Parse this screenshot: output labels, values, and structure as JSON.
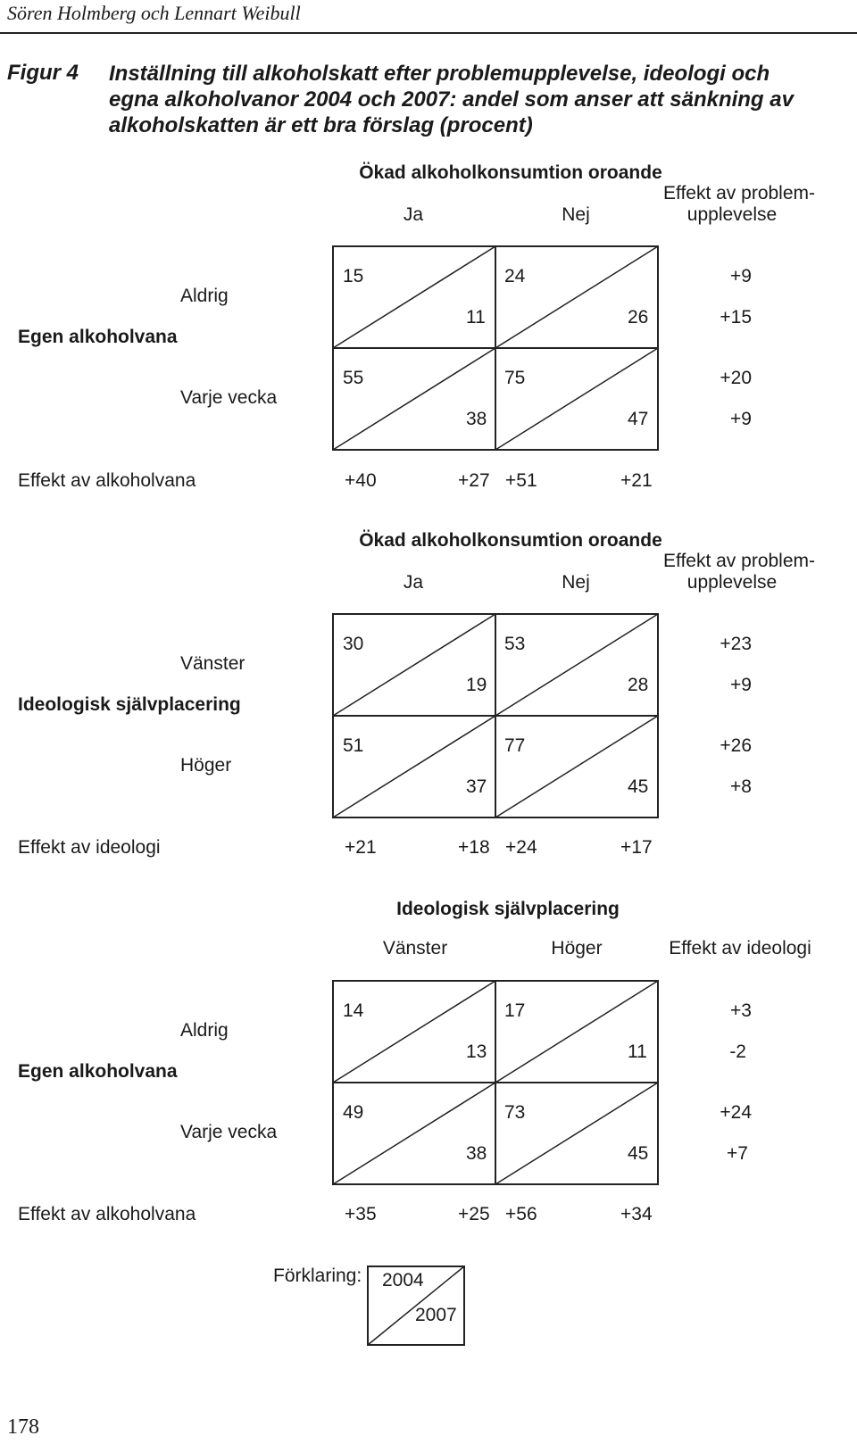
{
  "header": {
    "author": "Sören Holmberg och Lennart Weibull"
  },
  "figure": {
    "label": "Figur 4",
    "title_lines": [
      "Inställning till alkoholskatt efter problemupplevelse, ideologi och",
      "egna alkoholvanor 2004 och 2007: andel som anser att sänkning av",
      "alkoholskatten är ett bra förslag (procent)"
    ]
  },
  "panel1": {
    "col_header": "Ökad alkoholkonsumtion oroande",
    "col1": "Ja",
    "col2": "Nej",
    "effect_header_1": "Effekt av problem-",
    "effect_header_2": "upplevelse",
    "row_group": "Egen alkoholvana",
    "row1": "Aldrig",
    "row2": "Varje vecka",
    "cells": {
      "r1c1_2004": "15",
      "r1c1_2007": "11",
      "r1c2_2004": "24",
      "r1c2_2007": "26",
      "r2c1_2004": "55",
      "r2c1_2007": "38",
      "r2c2_2004": "75",
      "r2c2_2007": "47"
    },
    "row_effects": [
      "+9",
      "+15",
      "+20",
      "+9"
    ],
    "bottom_label": "Effekt av alkoholvana",
    "bottom_effects": [
      "+40",
      "+27",
      "+51",
      "+21"
    ]
  },
  "panel2": {
    "col_header": "Ökad alkoholkonsumtion oroande",
    "col1": "Ja",
    "col2": "Nej",
    "effect_header_1": "Effekt av problem-",
    "effect_header_2": "upplevelse",
    "row_group": "Ideologisk självplacering",
    "row1": "Vänster",
    "row2": "Höger",
    "cells": {
      "r1c1_2004": "30",
      "r1c1_2007": "19",
      "r1c2_2004": "53",
      "r1c2_2007": "28",
      "r2c1_2004": "51",
      "r2c1_2007": "37",
      "r2c2_2004": "77",
      "r2c2_2007": "45"
    },
    "row_effects": [
      "+23",
      "+9",
      "+26",
      "+8"
    ],
    "bottom_label": "Effekt av ideologi",
    "bottom_effects": [
      "+21",
      "+18",
      "+24",
      "+17"
    ]
  },
  "panel3": {
    "col_header": "Ideologisk självplacering",
    "col1": "Vänster",
    "col2": "Höger",
    "effect_header_1": "Effekt av ideologi",
    "row_group": "Egen alkoholvana",
    "row1": "Aldrig",
    "row2": "Varje vecka",
    "cells": {
      "r1c1_2004": "14",
      "r1c1_2007": "13",
      "r1c2_2004": "17",
      "r1c2_2007": "11",
      "r2c1_2004": "49",
      "r2c1_2007": "38",
      "r2c2_2004": "73",
      "r2c2_2007": "45"
    },
    "row_effects": [
      "+3",
      "-2",
      "+24",
      "+7"
    ],
    "bottom_label": "Effekt av alkoholvana",
    "bottom_effects": [
      "+35",
      "+25",
      "+56",
      "+34"
    ]
  },
  "legend": {
    "label": "Förklaring:",
    "year_top": "2004",
    "year_bottom": "2007"
  },
  "page_number": "178"
}
